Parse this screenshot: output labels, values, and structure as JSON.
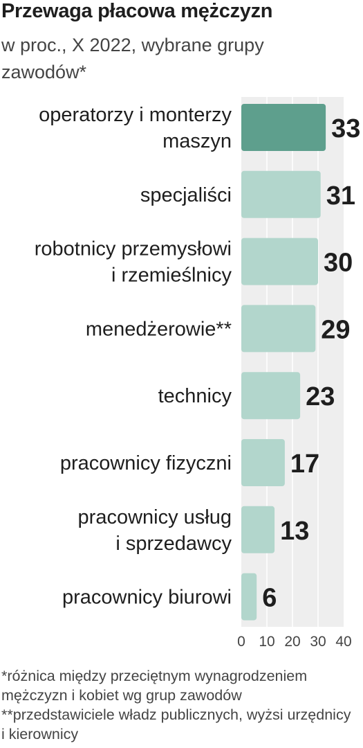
{
  "title": "Przewaga płacowa mężczyzn",
  "subtitle": "w proc., X 2022, wybrane grupy zawodów*",
  "footnote": "*różnica między przeciętnym wynagrodzeniem mężczyzn i kobiet wg grup zawodów **przedstawiciele władz publicznych, wyżsi urzędnicy i kierownicy",
  "colors": {
    "highlight_bar": "#5e9f8d",
    "bar": "#b2d6cc",
    "plot_background": "#eeeeee",
    "gridline": "#ffffff",
    "text": "#1e1e1e"
  },
  "chart_data": {
    "type": "bar",
    "orientation": "horizontal",
    "categories": [
      [
        "operatorzy i monterzy",
        "maszyn"
      ],
      [
        "specjaliści"
      ],
      [
        "robotnicy przemysłowi",
        "i rzemieślnicy"
      ],
      [
        "menedżerowie**"
      ],
      [
        "technicy"
      ],
      [
        "pracownicy fizyczni"
      ],
      [
        "pracownicy usług",
        "i sprzedawcy"
      ],
      [
        "pracownicy biurowi"
      ]
    ],
    "values": [
      33,
      31,
      30,
      29,
      23,
      17,
      13,
      6
    ],
    "value_labels": [
      "33",
      "31",
      "30",
      "29",
      "23",
      "17",
      "13",
      "6"
    ],
    "highlighted_index": 0,
    "xlim": [
      0,
      40
    ],
    "x_ticks": [
      "0",
      "10",
      "20",
      "30",
      "40"
    ],
    "grid": true
  }
}
